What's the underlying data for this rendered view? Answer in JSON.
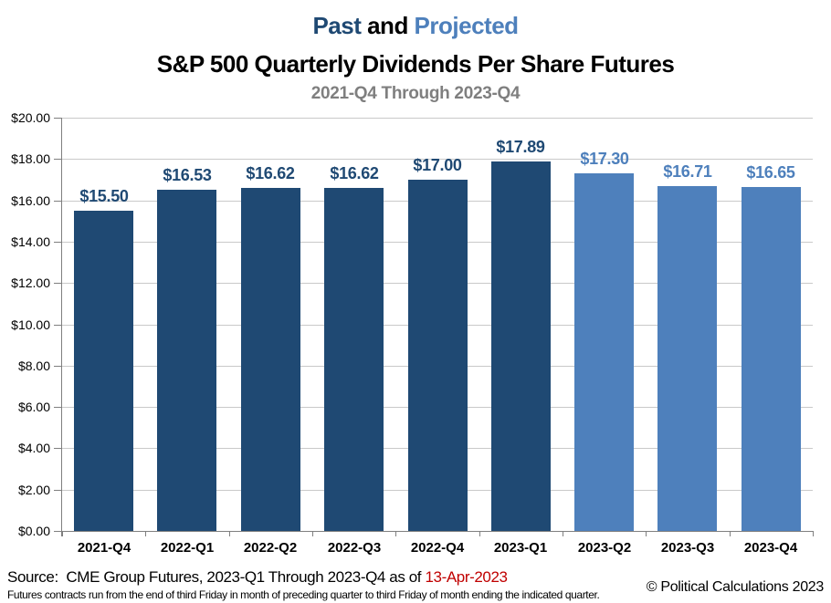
{
  "header": {
    "title_past": "Past",
    "title_and": " and ",
    "title_projected": "Projected",
    "main_title": "S&P 500 Quarterly Dividends Per Share Futures",
    "subtitle": "2021-Q4 Through 2023-Q4"
  },
  "chart_data": {
    "type": "bar",
    "title": "Past and Projected S&P 500 Quarterly Dividends Per Share Futures",
    "subtitle": "2021-Q4 Through 2023-Q4",
    "categories": [
      "2021-Q4",
      "2022-Q1",
      "2022-Q2",
      "2022-Q3",
      "2022-Q4",
      "2023-Q1",
      "2023-Q2",
      "2023-Q3",
      "2023-Q4"
    ],
    "values": [
      15.5,
      16.53,
      16.62,
      16.62,
      17.0,
      17.89,
      17.3,
      16.71,
      16.65
    ],
    "bar_labels": [
      "$15.50",
      "$16.53",
      "$16.62",
      "$16.62",
      "$17.00",
      "$17.89",
      "$17.30",
      "$16.71",
      "$16.65"
    ],
    "groups": [
      "past",
      "past",
      "past",
      "past",
      "past",
      "past",
      "projected",
      "projected",
      "projected"
    ],
    "series": [
      {
        "name": "Past",
        "values": [
          15.5,
          16.53,
          16.62,
          16.62,
          17.0,
          17.89,
          null,
          null,
          null
        ]
      },
      {
        "name": "Projected",
        "values": [
          null,
          null,
          null,
          null,
          null,
          null,
          17.3,
          16.71,
          16.65
        ]
      }
    ],
    "xlabel": "",
    "ylabel": "",
    "ylim": [
      0,
      20
    ],
    "ytick_step": 2,
    "ytick_labels": [
      "$0.00",
      "$2.00",
      "$4.00",
      "$6.00",
      "$8.00",
      "$10.00",
      "$12.00",
      "$14.00",
      "$16.00",
      "$18.00",
      "$20.00"
    ],
    "grid": true,
    "legend_position": "none",
    "colors": {
      "past": "#1f4973",
      "projected": "#4e80bc"
    }
  },
  "footer": {
    "source_prefix": "Source:  CME Group Futures, 2023-Q1 Through 2023-Q4 as of ",
    "source_date": "13-Apr-2023",
    "fine_print": "Futures contracts run from the end of third Friday in month of preceding quarter to third Friday of month ending the indicated quarter.",
    "copyright": "© Political Calculations 2023"
  },
  "colors": {
    "past_accent": "#1f4973",
    "projected_accent": "#4e80bc",
    "subtitle_gray": "#7f7f7f",
    "date_red": "#c00000",
    "gridline": "#c9c9c9",
    "axis": "#7f7f7f"
  }
}
